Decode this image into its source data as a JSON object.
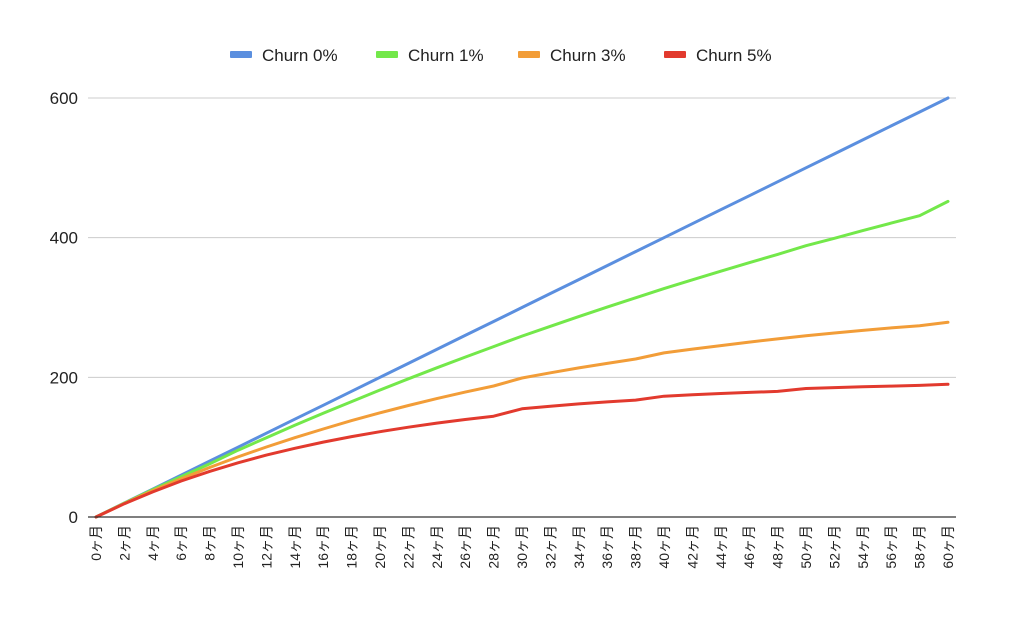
{
  "chart_data": {
    "type": "line",
    "title": "",
    "xlabel": "",
    "ylabel": "",
    "ylim": [
      0,
      600
    ],
    "yticks": [
      "0",
      "200",
      "400",
      "600"
    ],
    "grid": true,
    "legend_position": "top-center",
    "categories": [
      "0ヶ月",
      "2ヶ月",
      "4ヶ月",
      "6ヶ月",
      "8ヶ月",
      "10ヶ月",
      "12ヶ月",
      "14ヶ月",
      "16ヶ月",
      "18ヶ月",
      "20ヶ月",
      "22ヶ月",
      "24ヶ月",
      "26ヶ月",
      "28ヶ月",
      "30ヶ月",
      "32ヶ月",
      "34ヶ月",
      "36ヶ月",
      "38ヶ月",
      "40ヶ月",
      "42ヶ月",
      "44ヶ月",
      "46ヶ月",
      "48ヶ月",
      "50ヶ月",
      "52ヶ月",
      "54ヶ月",
      "56ヶ月",
      "58ヶ月",
      "60ヶ月"
    ],
    "x": [
      0,
      2,
      4,
      6,
      8,
      10,
      12,
      14,
      16,
      18,
      20,
      22,
      24,
      26,
      28,
      30,
      32,
      34,
      36,
      38,
      40,
      42,
      44,
      46,
      48,
      50,
      52,
      54,
      56,
      58,
      60
    ],
    "series": [
      {
        "name": "Churn 0%",
        "color": "#5b8fdf",
        "values": [
          0,
          20,
          40,
          60,
          80,
          100,
          120,
          140,
          160,
          180,
          200,
          220,
          240,
          260,
          280,
          300,
          320,
          340,
          360,
          380,
          400,
          420,
          440,
          460,
          480,
          500,
          520,
          540,
          560,
          580,
          600
        ]
      },
      {
        "name": "Churn 1%",
        "color": "#73e84a",
        "values": [
          0,
          19.9,
          39.2,
          57.9,
          76.1,
          95.6,
          113.6,
          131.3,
          148.5,
          165.3,
          181.8,
          197.9,
          213.6,
          229.0,
          244.0,
          259.0,
          273.1,
          287.0,
          300.6,
          313.9,
          327.0,
          339.6,
          352.0,
          364.1,
          376.0,
          388.5,
          399.1,
          410.1,
          420.9,
          431.5,
          452.0
        ]
      },
      {
        "name": "Churn 3%",
        "color": "#f29d38",
        "values": [
          0,
          19.4,
          37.8,
          54.8,
          70.9,
          86.0,
          100.2,
          113.6,
          126.0,
          138.0,
          149.2,
          159.7,
          169.6,
          178.8,
          187.6,
          199.0,
          206.5,
          213.5,
          220.0,
          226.2,
          235.0,
          240.5,
          245.5,
          250.4,
          255.0,
          259.5,
          263.5,
          267.2,
          270.8,
          274.0,
          279.0
        ]
      },
      {
        "name": "Churn 5%",
        "color": "#e23a2e",
        "values": [
          0,
          19.0,
          36.0,
          51.5,
          65.3,
          77.6,
          88.6,
          98.4,
          107.2,
          115.1,
          122.2,
          128.6,
          134.4,
          139.6,
          144.3,
          155.0,
          158.6,
          161.9,
          164.8,
          167.4,
          173.0,
          175.0,
          176.8,
          178.4,
          179.9,
          184.0,
          185.3,
          186.5,
          187.5,
          188.5,
          190.0
        ]
      }
    ]
  }
}
